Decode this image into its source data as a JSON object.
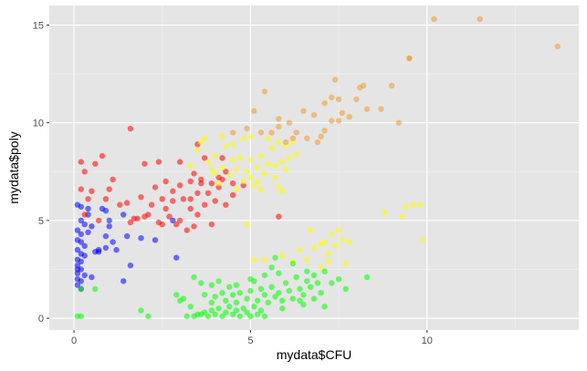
{
  "chart_data": {
    "type": "scatter",
    "title": "",
    "xlabel": "mydata$CFU",
    "ylabel": "mydata$poly",
    "xlim": [
      -0.7,
      14.3
    ],
    "ylim": [
      -0.6,
      16.0
    ],
    "x_ticks": [
      0,
      5,
      10
    ],
    "x_tick_labels": [
      "0",
      "5",
      "10"
    ],
    "y_ticks": [
      0,
      5,
      10,
      15
    ],
    "y_tick_labels": [
      "0",
      "5",
      "10",
      "15"
    ],
    "grid": true,
    "legend": "none",
    "panel_background": "#e5e5e5",
    "point_opacity": 0.55,
    "series": [
      {
        "color": "#0000ff",
        "points": [
          [
            0.1,
            5.8
          ],
          [
            0.2,
            5.7
          ],
          [
            0.4,
            5.6
          ],
          [
            0.2,
            5.0
          ],
          [
            0.3,
            4.8
          ],
          [
            0.1,
            4.5
          ],
          [
            0.2,
            4.3
          ],
          [
            0.4,
            4.4
          ],
          [
            0.1,
            4.0
          ],
          [
            0.2,
            3.9
          ],
          [
            0.3,
            3.7
          ],
          [
            0.1,
            3.5
          ],
          [
            0.2,
            3.3
          ],
          [
            0.3,
            3.2
          ],
          [
            0.1,
            3.0
          ],
          [
            0.2,
            2.9
          ],
          [
            0.1,
            2.7
          ],
          [
            0.2,
            2.5
          ],
          [
            0.1,
            2.3
          ],
          [
            0.3,
            2.2
          ],
          [
            0.1,
            2.0
          ],
          [
            0.2,
            1.9
          ],
          [
            0.1,
            1.7
          ],
          [
            0.2,
            1.5
          ],
          [
            0.5,
            2.1
          ],
          [
            0.6,
            3.4
          ],
          [
            0.7,
            3.5
          ],
          [
            0.9,
            4.2
          ],
          [
            1.0,
            4.7
          ],
          [
            1.1,
            3.9
          ],
          [
            0.9,
            3.6
          ],
          [
            1.2,
            3.5
          ],
          [
            0.8,
            5.6
          ],
          [
            0.9,
            5.5
          ],
          [
            1.4,
            5.3
          ],
          [
            1.5,
            4.2
          ],
          [
            1.6,
            2.7
          ],
          [
            1.4,
            1.9
          ],
          [
            1.9,
            4.1
          ],
          [
            2.3,
            4.0
          ],
          [
            2.8,
            5.0
          ],
          [
            2.9,
            3.1
          ],
          [
            1.0,
            5.0
          ],
          [
            0.5,
            4.7
          ],
          [
            0.4,
            5.3
          ],
          [
            0.1,
            2.5
          ],
          [
            0.7,
            3.4
          ]
        ]
      },
      {
        "color": "#ff0000",
        "points": [
          [
            0.2,
            8.0
          ],
          [
            0.3,
            7.5
          ],
          [
            0.6,
            7.9
          ],
          [
            0.5,
            6.5
          ],
          [
            0.8,
            8.3
          ],
          [
            0.2,
            6.6
          ],
          [
            0.4,
            6.1
          ],
          [
            0.9,
            6.1
          ],
          [
            1.0,
            6.6
          ],
          [
            1.1,
            7.1
          ],
          [
            0.3,
            5.3
          ],
          [
            0.7,
            5.0
          ],
          [
            1.3,
            5.8
          ],
          [
            1.5,
            5.9
          ],
          [
            1.6,
            4.9
          ],
          [
            1.8,
            5.1
          ],
          [
            1.9,
            6.2
          ],
          [
            1.6,
            9.7
          ],
          [
            2.0,
            7.9
          ],
          [
            2.3,
            6.7
          ],
          [
            2.5,
            6.1
          ],
          [
            2.2,
            5.8
          ],
          [
            2.6,
            5.6
          ],
          [
            2.7,
            5.2
          ],
          [
            2.9,
            4.8
          ],
          [
            2.4,
            4.9
          ],
          [
            2.6,
            7.0
          ],
          [
            2.8,
            6.5
          ],
          [
            3.0,
            6.8
          ],
          [
            3.1,
            6.1
          ],
          [
            3.3,
            7.0
          ],
          [
            3.4,
            7.4
          ],
          [
            3.5,
            6.4
          ],
          [
            3.6,
            7.1
          ],
          [
            3.7,
            5.8
          ],
          [
            3.8,
            6.4
          ],
          [
            3.9,
            6.9
          ],
          [
            4.0,
            6.0
          ],
          [
            4.1,
            6.7
          ],
          [
            4.2,
            7.1
          ],
          [
            4.3,
            5.8
          ],
          [
            3.3,
            5.6
          ],
          [
            3.5,
            5.3
          ],
          [
            3.0,
            5.0
          ],
          [
            3.2,
            4.5
          ],
          [
            3.4,
            4.7
          ],
          [
            3.9,
            4.8
          ],
          [
            3.5,
            8.9
          ],
          [
            3.7,
            8.2
          ],
          [
            4.1,
            7.2
          ],
          [
            4.3,
            7.5
          ],
          [
            4.5,
            6.9
          ],
          [
            4.2,
            8.2
          ],
          [
            3.0,
            8.0
          ],
          [
            2.4,
            8.0
          ],
          [
            2.0,
            5.2
          ],
          [
            1.7,
            5.1
          ],
          [
            3.3,
            6.1
          ],
          [
            3.6,
            6.9
          ],
          [
            5.8,
            5.2
          ],
          [
            4.8,
            6.8
          ],
          [
            4.5,
            6.3
          ],
          [
            2.8,
            6.0
          ],
          [
            2.1,
            5.3
          ],
          [
            2.5,
            4.8
          ]
        ]
      },
      {
        "color": "#ffff00",
        "points": [
          [
            3.3,
            7.8
          ],
          [
            3.5,
            8.6
          ],
          [
            3.7,
            9.2
          ],
          [
            3.8,
            8.0
          ],
          [
            3.9,
            7.6
          ],
          [
            4.0,
            8.3
          ],
          [
            4.1,
            6.9
          ],
          [
            4.2,
            7.7
          ],
          [
            4.3,
            8.8
          ],
          [
            4.4,
            7.3
          ],
          [
            4.5,
            8.1
          ],
          [
            4.6,
            7.6
          ],
          [
            4.7,
            8.2
          ],
          [
            4.8,
            7.0
          ],
          [
            4.9,
            7.5
          ],
          [
            5.0,
            8.1
          ],
          [
            5.0,
            7.2
          ],
          [
            5.1,
            6.8
          ],
          [
            5.2,
            7.7
          ],
          [
            5.3,
            8.3
          ],
          [
            5.4,
            7.4
          ],
          [
            5.5,
            7.9
          ],
          [
            5.6,
            8.7
          ],
          [
            5.7,
            7.2
          ],
          [
            5.8,
            6.7
          ],
          [
            5.9,
            8.0
          ],
          [
            6.0,
            7.6
          ],
          [
            6.1,
            8.2
          ],
          [
            6.2,
            9.0
          ],
          [
            5.5,
            9.2
          ],
          [
            5.8,
            9.0
          ],
          [
            4.8,
            9.2
          ],
          [
            4.5,
            8.9
          ],
          [
            5.3,
            6.6
          ],
          [
            5.9,
            6.5
          ],
          [
            4.0,
            7.4
          ],
          [
            4.6,
            6.6
          ],
          [
            5.2,
            7.0
          ],
          [
            5.7,
            7.8
          ],
          [
            6.0,
            8.8
          ],
          [
            6.3,
            8.4
          ],
          [
            5.0,
            9.3
          ],
          [
            4.9,
            4.8
          ],
          [
            5.1,
            3.0
          ],
          [
            5.9,
            3.2
          ],
          [
            6.4,
            3.5
          ],
          [
            6.6,
            3.0
          ],
          [
            6.8,
            3.6
          ],
          [
            7.0,
            3.8
          ],
          [
            7.1,
            3.9
          ],
          [
            7.2,
            3.3
          ],
          [
            7.4,
            3.7
          ],
          [
            7.5,
            4.5
          ],
          [
            7.6,
            4.0
          ],
          [
            7.8,
            3.9
          ],
          [
            7.3,
            4.3
          ],
          [
            7.7,
            2.8
          ],
          [
            7.0,
            2.6
          ],
          [
            7.2,
            2.9
          ],
          [
            6.7,
            4.5
          ],
          [
            5.4,
            3.0
          ],
          [
            6.2,
            2.9
          ],
          [
            8.8,
            5.4
          ],
          [
            9.3,
            5.2
          ],
          [
            9.6,
            5.8
          ],
          [
            9.9,
            4.0
          ],
          [
            9.8,
            5.8
          ],
          [
            9.4,
            5.7
          ],
          [
            3.6,
            9.0
          ],
          [
            4.2,
            9.3
          ]
        ]
      },
      {
        "color": "#ee9a2e",
        "points": [
          [
            5.4,
            11.6
          ],
          [
            5.1,
            10.6
          ],
          [
            5.8,
            10.2
          ],
          [
            6.5,
            10.6
          ],
          [
            6.8,
            10.4
          ],
          [
            6.1,
            10.0
          ],
          [
            5.8,
            9.8
          ],
          [
            5.6,
            9.5
          ],
          [
            5.3,
            9.5
          ],
          [
            4.9,
            9.7
          ],
          [
            6.3,
            9.5
          ],
          [
            6.6,
            9.2
          ],
          [
            6.9,
            9.0
          ],
          [
            7.1,
            9.6
          ],
          [
            7.3,
            10.1
          ],
          [
            7.1,
            11.0
          ],
          [
            7.6,
            10.5
          ],
          [
            7.8,
            10.3
          ],
          [
            7.5,
            10.1
          ],
          [
            6.2,
            9.2
          ],
          [
            7.0,
            9.3
          ],
          [
            8.0,
            11.2
          ],
          [
            8.2,
            11.9
          ],
          [
            8.3,
            10.7
          ],
          [
            8.7,
            10.7
          ],
          [
            7.3,
            11.3
          ],
          [
            7.5,
            11.2
          ],
          [
            7.4,
            12.2
          ],
          [
            8.1,
            11.8
          ],
          [
            9.0,
            11.9
          ],
          [
            9.2,
            10.0
          ],
          [
            9.5,
            13.3
          ],
          [
            9.5,
            13.3
          ],
          [
            10.2,
            15.3
          ],
          [
            11.5,
            15.3
          ],
          [
            13.7,
            13.9
          ],
          [
            6.0,
            9.0
          ],
          [
            4.5,
            9.5
          ]
        ]
      },
      {
        "color": "#00ff00",
        "points": [
          [
            0.1,
            0.1
          ],
          [
            0.2,
            0.1
          ],
          [
            0.2,
            1.5
          ],
          [
            0.6,
            1.5
          ],
          [
            1.9,
            0.4
          ],
          [
            2.1,
            0.1
          ],
          [
            2.9,
            1.2
          ],
          [
            3.0,
            0.9
          ],
          [
            3.2,
            0.1
          ],
          [
            3.4,
            0.1
          ],
          [
            3.5,
            0.2
          ],
          [
            3.6,
            0.2
          ],
          [
            3.7,
            0.3
          ],
          [
            3.8,
            0.1
          ],
          [
            3.9,
            0.4
          ],
          [
            4.0,
            0.2
          ],
          [
            4.1,
            0.5
          ],
          [
            4.2,
            0.1
          ],
          [
            4.3,
            0.3
          ],
          [
            4.4,
            0.6
          ],
          [
            4.5,
            0.2
          ],
          [
            4.6,
            0.4
          ],
          [
            4.7,
            0.1
          ],
          [
            4.8,
            0.5
          ],
          [
            4.9,
            0.3
          ],
          [
            5.0,
            0.1
          ],
          [
            5.1,
            0.6
          ],
          [
            5.2,
            0.2
          ],
          [
            5.3,
            0.4
          ],
          [
            5.4,
            0.1
          ],
          [
            3.7,
            1.2
          ],
          [
            3.9,
            0.8
          ],
          [
            4.0,
            1.1
          ],
          [
            4.2,
            1.3
          ],
          [
            4.3,
            0.9
          ],
          [
            4.5,
            1.2
          ],
          [
            4.6,
            0.8
          ],
          [
            4.7,
            1.3
          ],
          [
            4.9,
            1.0
          ],
          [
            5.0,
            1.4
          ],
          [
            5.2,
            0.9
          ],
          [
            5.3,
            1.5
          ],
          [
            5.4,
            1.2
          ],
          [
            5.5,
            0.8
          ],
          [
            5.6,
            1.6
          ],
          [
            5.7,
            1.1
          ],
          [
            5.8,
            1.3
          ],
          [
            5.9,
            0.9
          ],
          [
            6.0,
            1.8
          ],
          [
            6.1,
            1.4
          ],
          [
            6.2,
            1.0
          ],
          [
            6.3,
            2.1
          ],
          [
            6.4,
            1.5
          ],
          [
            6.5,
            1.2
          ],
          [
            6.6,
            1.9
          ],
          [
            6.7,
            1.6
          ],
          [
            6.8,
            2.2
          ],
          [
            6.9,
            1.8
          ],
          [
            7.0,
            1.3
          ],
          [
            7.1,
            2.4
          ],
          [
            7.3,
            1.8
          ],
          [
            7.5,
            2.0
          ],
          [
            7.7,
            1.5
          ],
          [
            8.3,
            2.1
          ],
          [
            7.1,
            0.6
          ],
          [
            6.5,
            0.7
          ],
          [
            5.9,
            0.5
          ],
          [
            5.4,
            2.2
          ],
          [
            5.0,
            2.0
          ],
          [
            4.6,
            1.7
          ],
          [
            4.4,
            1.6
          ],
          [
            4.1,
            1.9
          ],
          [
            3.9,
            1.7
          ],
          [
            3.6,
            1.8
          ],
          [
            3.4,
            2.1
          ],
          [
            5.6,
            2.6
          ],
          [
            5.8,
            2.3
          ],
          [
            6.2,
            2.8
          ],
          [
            5.7,
            3.1
          ],
          [
            6.6,
            2.4
          ],
          [
            3.3,
            0.6
          ],
          [
            3.1,
            1.0
          ],
          [
            6.4,
            0.9
          ],
          [
            6.8,
            1.0
          ],
          [
            5.1,
            1.9
          ]
        ]
      }
    ]
  }
}
